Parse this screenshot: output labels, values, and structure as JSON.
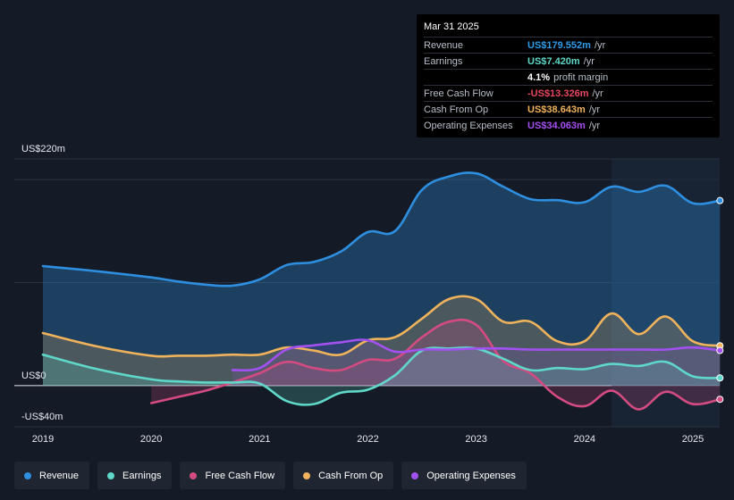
{
  "tooltip": {
    "date": "Mar 31 2025",
    "rows": [
      {
        "label": "Revenue",
        "value": "US$179.552m",
        "unit": "/yr",
        "color": "#2e9be6"
      },
      {
        "label": "Earnings",
        "value": "US$7.420m",
        "unit": "/yr",
        "color": "#5fd7c9"
      },
      {
        "label": "",
        "value": "4.1%",
        "unit": "profit margin",
        "color": "#ffffff"
      },
      {
        "label": "Free Cash Flow",
        "value": "-US$13.326m",
        "unit": "/yr",
        "color": "#e8475f"
      },
      {
        "label": "Cash From Op",
        "value": "US$38.643m",
        "unit": "/yr",
        "color": "#f0b35b"
      },
      {
        "label": "Operating Expenses",
        "value": "US$34.063m",
        "unit": "/yr",
        "color": "#a350f0"
      }
    ]
  },
  "legend": [
    {
      "label": "Revenue",
      "color": "#2e8fe0"
    },
    {
      "label": "Earnings",
      "color": "#5fd7c9"
    },
    {
      "label": "Free Cash Flow",
      "color": "#d44b82"
    },
    {
      "label": "Cash From Op",
      "color": "#f0b35b"
    },
    {
      "label": "Operating Expenses",
      "color": "#a350f0"
    }
  ],
  "chart_data": {
    "type": "area",
    "y_axis_labels": [
      "US$220m",
      "US$0",
      "-US$40m"
    ],
    "ylim": [
      -40,
      220
    ],
    "xlim": [
      2018.75,
      2025.25
    ],
    "x_tick_labels": [
      "2019",
      "2020",
      "2021",
      "2022",
      "2023",
      "2024",
      "2025"
    ],
    "x_ticks": [
      2019,
      2020,
      2021,
      2022,
      2023,
      2024,
      2025
    ],
    "highlight_from": 2024.25,
    "series": [
      {
        "name": "Revenue",
        "color": "#2e8fe0",
        "x": [
          2019,
          2019.5,
          2020,
          2020.25,
          2020.5,
          2020.75,
          2021,
          2021.25,
          2021.5,
          2021.75,
          2022,
          2022.25,
          2022.5,
          2022.75,
          2023,
          2023.25,
          2023.5,
          2023.75,
          2024,
          2024.25,
          2024.5,
          2024.75,
          2025,
          2025.25
        ],
        "values": [
          116,
          111,
          105,
          101,
          98,
          97,
          103,
          117,
          120,
          130,
          149,
          150,
          190,
          203,
          206,
          193,
          181,
          180,
          178,
          193,
          188,
          194,
          177,
          179.552
        ]
      },
      {
        "name": "Earnings",
        "color": "#5fd7c9",
        "x": [
          2019,
          2019.5,
          2020,
          2020.25,
          2020.5,
          2020.75,
          2021,
          2021.25,
          2021.5,
          2021.75,
          2022,
          2022.25,
          2022.5,
          2022.75,
          2023,
          2023.25,
          2023.5,
          2023.75,
          2024,
          2024.25,
          2024.5,
          2024.75,
          2025,
          2025.25
        ],
        "values": [
          30,
          16,
          6,
          4,
          3,
          3,
          2,
          -15,
          -18,
          -7,
          -4,
          10,
          34,
          36,
          36,
          26,
          15,
          17,
          16,
          21,
          19,
          23,
          9,
          7.42
        ]
      },
      {
        "name": "Free Cash Flow",
        "color": "#d44b82",
        "x": [
          2020,
          2020.25,
          2020.5,
          2020.75,
          2021,
          2021.25,
          2021.5,
          2021.75,
          2022,
          2022.25,
          2022.5,
          2022.75,
          2023,
          2023.25,
          2023.5,
          2023.75,
          2024,
          2024.25,
          2024.5,
          2024.75,
          2025,
          2025.25
        ],
        "values": [
          -17,
          -11,
          -5,
          3,
          12,
          23,
          17,
          15,
          25,
          26,
          47,
          62,
          59,
          24,
          12,
          -11,
          -20,
          -5,
          -23,
          -6,
          -18,
          -13.326
        ]
      },
      {
        "name": "Cash From Op",
        "color": "#f0b35b",
        "x": [
          2019,
          2019.5,
          2020,
          2020.25,
          2020.5,
          2020.75,
          2021,
          2021.25,
          2021.5,
          2021.75,
          2022,
          2022.25,
          2022.5,
          2022.75,
          2023,
          2023.25,
          2023.5,
          2023.75,
          2024,
          2024.25,
          2024.5,
          2024.75,
          2025,
          2025.25
        ],
        "values": [
          51,
          38,
          29,
          29,
          29,
          30,
          30,
          37,
          34,
          30,
          44,
          47,
          65,
          84,
          84,
          62,
          62,
          43,
          43,
          70,
          50,
          67,
          43,
          38.643
        ]
      },
      {
        "name": "Operating Expenses",
        "color": "#a350f0",
        "x": [
          2020.75,
          2021,
          2021.25,
          2021.5,
          2021.75,
          2022,
          2022.25,
          2022.5,
          2022.75,
          2023,
          2023.25,
          2023.5,
          2023.75,
          2024,
          2024.25,
          2024.5,
          2024.75,
          2025,
          2025.25
        ],
        "values": [
          15,
          17,
          35,
          39,
          42,
          44,
          33,
          35,
          35,
          36,
          36,
          35,
          35,
          35,
          35,
          35,
          35,
          37,
          34.063
        ]
      }
    ]
  }
}
